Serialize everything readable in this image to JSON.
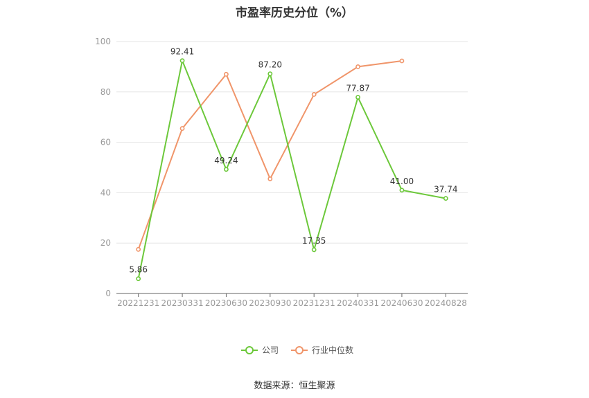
{
  "chart_data": {
    "type": "line",
    "title": "市盈率历史分位（%）",
    "categories": [
      "20221231",
      "20230331",
      "20230630",
      "20230930",
      "20231231",
      "20240331",
      "20240630",
      "20240828"
    ],
    "ylim": [
      0,
      100
    ],
    "yticks": [
      0,
      20,
      40,
      60,
      80,
      100
    ],
    "grid": true,
    "legend_position": "bottom",
    "series": [
      {
        "name": "公司",
        "color": "#6cc83a",
        "values": [
          5.86,
          92.41,
          49.24,
          87.2,
          17.35,
          77.87,
          41.0,
          37.74
        ],
        "labels": [
          "5.86",
          "92.41",
          "49.24",
          "87.20",
          "17.35",
          "77.87",
          "41.00",
          "37.74"
        ]
      },
      {
        "name": "行业中位数",
        "color": "#f0956a",
        "values": [
          17.5,
          65.5,
          87.0,
          45.5,
          79.0,
          90.0,
          92.3,
          null
        ]
      }
    ]
  },
  "source": "数据来源：恒生聚源"
}
